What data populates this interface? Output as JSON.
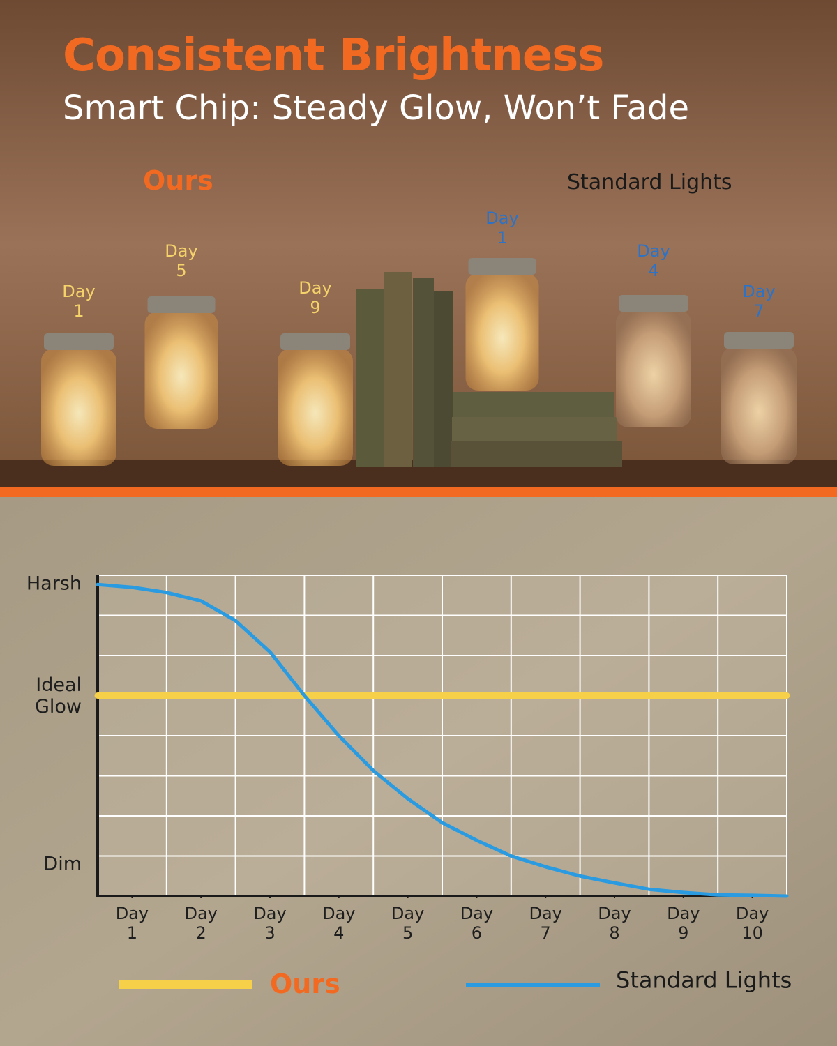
{
  "header": {
    "title": "Consistent Brightness",
    "subtitle": "Smart Chip: Steady Glow, Won’t Fade"
  },
  "photo": {
    "ours_label": "Ours",
    "standard_label": "Standard Lights",
    "jars": [
      {
        "label": "Day\n1",
        "color": "#f5d36b",
        "bright": true
      },
      {
        "label": "Day\n5",
        "color": "#f5d36b",
        "bright": true
      },
      {
        "label": "Day\n9",
        "color": "#f5d36b",
        "bright": true
      },
      {
        "label": "Day\n1",
        "color": "#2b73c8",
        "bright": true
      },
      {
        "label": "Day\n4",
        "color": "#2b73c8",
        "bright": false
      },
      {
        "label": "Day\n7",
        "color": "#2b73c8",
        "bright": false
      }
    ]
  },
  "chart_data": {
    "type": "line",
    "xlim": [
      0.5,
      10.5
    ],
    "ylim": [
      0,
      8
    ],
    "xticks": [
      {
        "value": 1,
        "label": "Day\n1"
      },
      {
        "value": 2,
        "label": "Day\n2"
      },
      {
        "value": 3,
        "label": "Day\n3"
      },
      {
        "value": 4,
        "label": "Day\n4"
      },
      {
        "value": 5,
        "label": "Day\n5"
      },
      {
        "value": 6,
        "label": "Day\n6"
      },
      {
        "value": 7,
        "label": "Day\n7"
      },
      {
        "value": 8,
        "label": "Day\n8"
      },
      {
        "value": 9,
        "label": "Day\n9"
      },
      {
        "value": 10,
        "label": "Day\n10"
      }
    ],
    "yticks": [
      {
        "value": 7.8,
        "label": "Harsh"
      },
      {
        "value": 5,
        "label": "Ideal\nGlow"
      },
      {
        "value": 0.8,
        "label": "Dim"
      }
    ],
    "xgrid": [
      1.5,
      2.5,
      3.5,
      4.5,
      5.5,
      6.5,
      7.5,
      8.5,
      9.5,
      10.5
    ],
    "ygrid": [
      1,
      2,
      3,
      4,
      5,
      6,
      7,
      8
    ],
    "grid": true,
    "series": [
      {
        "name": "Ours",
        "color": "#f7d04a",
        "x": [
          0.5,
          10.5
        ],
        "values": [
          5,
          5
        ]
      },
      {
        "name": "Standard Lights",
        "color": "#2a9be0",
        "x": [
          0.5,
          1,
          1.5,
          2,
          2.5,
          3,
          3.5,
          4,
          4.5,
          5,
          5.5,
          6,
          6.5,
          7,
          7.5,
          8,
          8.5,
          9,
          9.5,
          10,
          10.5
        ],
        "values": [
          7.77,
          7.7,
          7.57,
          7.36,
          6.87,
          6.09,
          5.0,
          4.0,
          3.13,
          2.43,
          1.83,
          1.39,
          1.0,
          0.73,
          0.5,
          0.33,
          0.17,
          0.09,
          0.03,
          0.02,
          0
        ]
      }
    ]
  }
}
